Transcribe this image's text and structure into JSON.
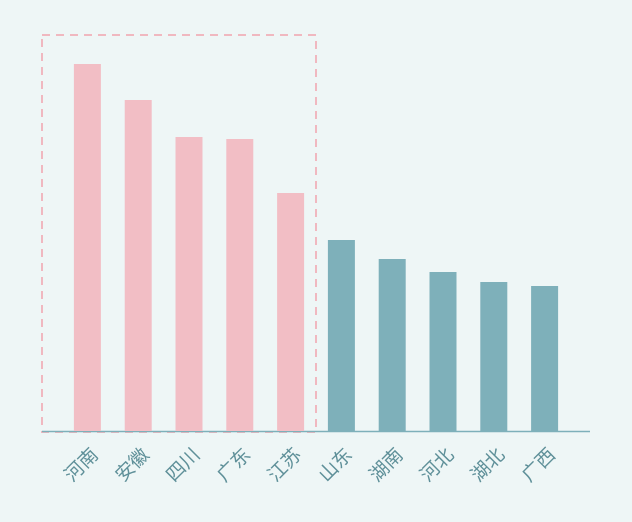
{
  "chart_data": {
    "type": "bar",
    "categories": [
      "河南",
      "安徽",
      "四川",
      "广东",
      "江苏",
      "山东",
      "湖南",
      "河北",
      "湖北",
      "广西"
    ],
    "values": [
      367,
      331,
      294,
      292,
      238,
      191,
      172,
      159,
      149,
      145
    ],
    "colors": [
      "#f2bec5",
      "#f2bec5",
      "#f2bec5",
      "#f2bec5",
      "#f2bec5",
      "#7eb0ba",
      "#7eb0ba",
      "#7eb0ba",
      "#7eb0ba",
      "#7eb0ba"
    ],
    "ylim": [
      0,
      400
    ]
  }
}
